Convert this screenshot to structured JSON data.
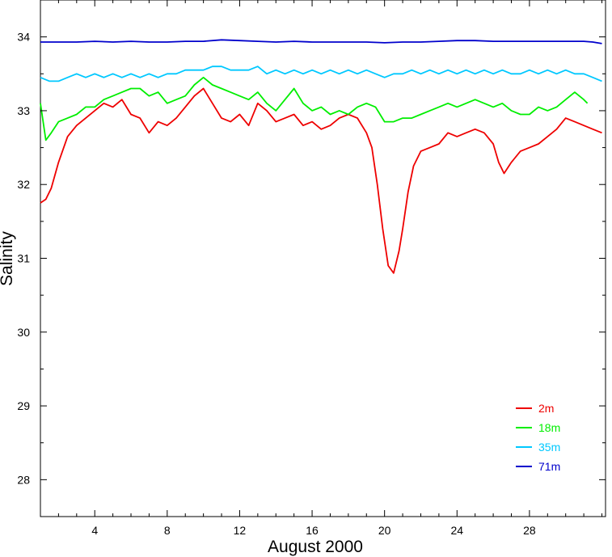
{
  "chart_data": {
    "type": "line",
    "xlabel": "August 2000",
    "ylabel": "Salinity",
    "xlim": [
      1,
      32.2
    ],
    "ylim": [
      27.5,
      34.5
    ],
    "x_ticks": [
      4,
      8,
      12,
      16,
      20,
      24,
      28
    ],
    "x_minor_ticks": [
      2,
      3,
      5,
      6,
      7,
      9,
      10,
      11,
      13,
      14,
      15,
      17,
      18,
      19,
      21,
      22,
      23,
      25,
      26,
      27,
      29,
      30,
      31,
      32
    ],
    "y_ticks": [
      28,
      29,
      30,
      31,
      32,
      33,
      34
    ],
    "grid": false,
    "legend_position": "bottom-right",
    "series": [
      {
        "name": "2m",
        "color": "#ee0000",
        "x": [
          1.0,
          1.3,
          1.6,
          2.0,
          2.5,
          3.0,
          3.5,
          4.0,
          4.5,
          5.0,
          5.5,
          6.0,
          6.5,
          7.0,
          7.5,
          8.0,
          8.5,
          9.0,
          9.5,
          10.0,
          10.5,
          11.0,
          11.5,
          12.0,
          12.5,
          13.0,
          13.5,
          14.0,
          14.5,
          15.0,
          15.5,
          16.0,
          16.5,
          17.0,
          17.5,
          18.0,
          18.5,
          19.0,
          19.3,
          19.6,
          19.9,
          20.2,
          20.5,
          20.8,
          21.0,
          21.3,
          21.6,
          22.0,
          22.5,
          23.0,
          23.5,
          24.0,
          24.5,
          25.0,
          25.5,
          26.0,
          26.3,
          26.6,
          27.0,
          27.5,
          28.0,
          28.5,
          29.0,
          29.5,
          30.0,
          30.5,
          31.0,
          31.5,
          32.0
        ],
        "values": [
          31.75,
          31.8,
          31.95,
          32.3,
          32.65,
          32.8,
          32.9,
          33.0,
          33.1,
          33.05,
          33.15,
          32.95,
          32.9,
          32.7,
          32.85,
          32.8,
          32.9,
          33.05,
          33.2,
          33.3,
          33.1,
          32.9,
          32.85,
          32.95,
          32.8,
          33.1,
          33.0,
          32.85,
          32.9,
          32.95,
          32.8,
          32.85,
          32.75,
          32.8,
          32.9,
          32.95,
          32.9,
          32.7,
          32.5,
          32.0,
          31.4,
          30.9,
          30.8,
          31.1,
          31.4,
          31.9,
          32.25,
          32.45,
          32.5,
          32.55,
          32.7,
          32.65,
          32.7,
          32.75,
          32.7,
          32.55,
          32.3,
          32.15,
          32.3,
          32.45,
          32.5,
          32.55,
          32.65,
          32.75,
          32.9,
          32.85,
          32.8,
          32.75,
          32.7
        ]
      },
      {
        "name": "18m",
        "color": "#00ee00",
        "x": [
          1.0,
          1.3,
          1.6,
          2.0,
          2.5,
          3.0,
          3.5,
          4.0,
          4.5,
          5.0,
          5.5,
          6.0,
          6.5,
          7.0,
          7.5,
          8.0,
          8.5,
          9.0,
          9.5,
          10.0,
          10.5,
          11.0,
          11.5,
          12.0,
          12.5,
          13.0,
          13.5,
          14.0,
          14.5,
          15.0,
          15.5,
          16.0,
          16.5,
          17.0,
          17.5,
          18.0,
          18.5,
          19.0,
          19.5,
          20.0,
          20.5,
          21.0,
          21.5,
          22.0,
          22.5,
          23.0,
          23.5,
          24.0,
          24.5,
          25.0,
          25.5,
          26.0,
          26.5,
          27.0,
          27.5,
          28.0,
          28.5,
          29.0,
          29.5,
          30.0,
          30.5,
          31.0,
          31.2
        ],
        "values": [
          33.1,
          32.6,
          32.7,
          32.85,
          32.9,
          32.95,
          33.05,
          33.05,
          33.15,
          33.2,
          33.25,
          33.3,
          33.3,
          33.2,
          33.25,
          33.1,
          33.15,
          33.2,
          33.35,
          33.45,
          33.35,
          33.3,
          33.25,
          33.2,
          33.15,
          33.25,
          33.1,
          33.0,
          33.15,
          33.3,
          33.1,
          33.0,
          33.05,
          32.95,
          33.0,
          32.95,
          33.05,
          33.1,
          33.05,
          32.85,
          32.85,
          32.9,
          32.9,
          32.95,
          33.0,
          33.05,
          33.1,
          33.05,
          33.1,
          33.15,
          33.1,
          33.05,
          33.1,
          33.0,
          32.95,
          32.95,
          33.05,
          33.0,
          33.05,
          33.15,
          33.25,
          33.15,
          33.1
        ]
      },
      {
        "name": "35m",
        "color": "#00c8ff",
        "x": [
          1.0,
          1.5,
          2.0,
          2.5,
          3.0,
          3.5,
          4.0,
          4.5,
          5.0,
          5.5,
          6.0,
          6.5,
          7.0,
          7.5,
          8.0,
          8.5,
          9.0,
          9.5,
          10.0,
          10.5,
          11.0,
          11.5,
          12.0,
          12.5,
          13.0,
          13.5,
          14.0,
          14.5,
          15.0,
          15.5,
          16.0,
          16.5,
          17.0,
          17.5,
          18.0,
          18.5,
          19.0,
          19.5,
          20.0,
          20.5,
          21.0,
          21.5,
          22.0,
          22.5,
          23.0,
          23.5,
          24.0,
          24.5,
          25.0,
          25.5,
          26.0,
          26.5,
          27.0,
          27.5,
          28.0,
          28.5,
          29.0,
          29.5,
          30.0,
          30.5,
          31.0,
          31.5,
          32.0
        ],
        "values": [
          33.45,
          33.4,
          33.4,
          33.45,
          33.5,
          33.45,
          33.5,
          33.45,
          33.5,
          33.45,
          33.5,
          33.45,
          33.5,
          33.45,
          33.5,
          33.5,
          33.55,
          33.55,
          33.55,
          33.6,
          33.6,
          33.55,
          33.55,
          33.55,
          33.6,
          33.5,
          33.55,
          33.5,
          33.55,
          33.5,
          33.55,
          33.5,
          33.55,
          33.5,
          33.55,
          33.5,
          33.55,
          33.5,
          33.45,
          33.5,
          33.5,
          33.55,
          33.5,
          33.55,
          33.5,
          33.55,
          33.5,
          33.55,
          33.5,
          33.55,
          33.5,
          33.55,
          33.5,
          33.5,
          33.55,
          33.5,
          33.55,
          33.5,
          33.55,
          33.5,
          33.5,
          33.45,
          33.4
        ]
      },
      {
        "name": "71m",
        "color": "#0000cc",
        "x": [
          1.0,
          2.0,
          3.0,
          4.0,
          5.0,
          6.0,
          7.0,
          8.0,
          9.0,
          10.0,
          11.0,
          12.0,
          13.0,
          14.0,
          15.0,
          16.0,
          17.0,
          18.0,
          19.0,
          20.0,
          21.0,
          22.0,
          23.0,
          24.0,
          25.0,
          26.0,
          27.0,
          28.0,
          29.0,
          30.0,
          31.0,
          31.5,
          32.0
        ],
        "values": [
          33.93,
          33.93,
          33.93,
          33.94,
          33.93,
          33.94,
          33.93,
          33.93,
          33.94,
          33.94,
          33.96,
          33.95,
          33.94,
          33.93,
          33.94,
          33.93,
          33.93,
          33.93,
          33.93,
          33.92,
          33.93,
          33.93,
          33.94,
          33.95,
          33.95,
          33.94,
          33.94,
          33.94,
          33.94,
          33.94,
          33.94,
          33.93,
          33.91
        ]
      }
    ]
  }
}
